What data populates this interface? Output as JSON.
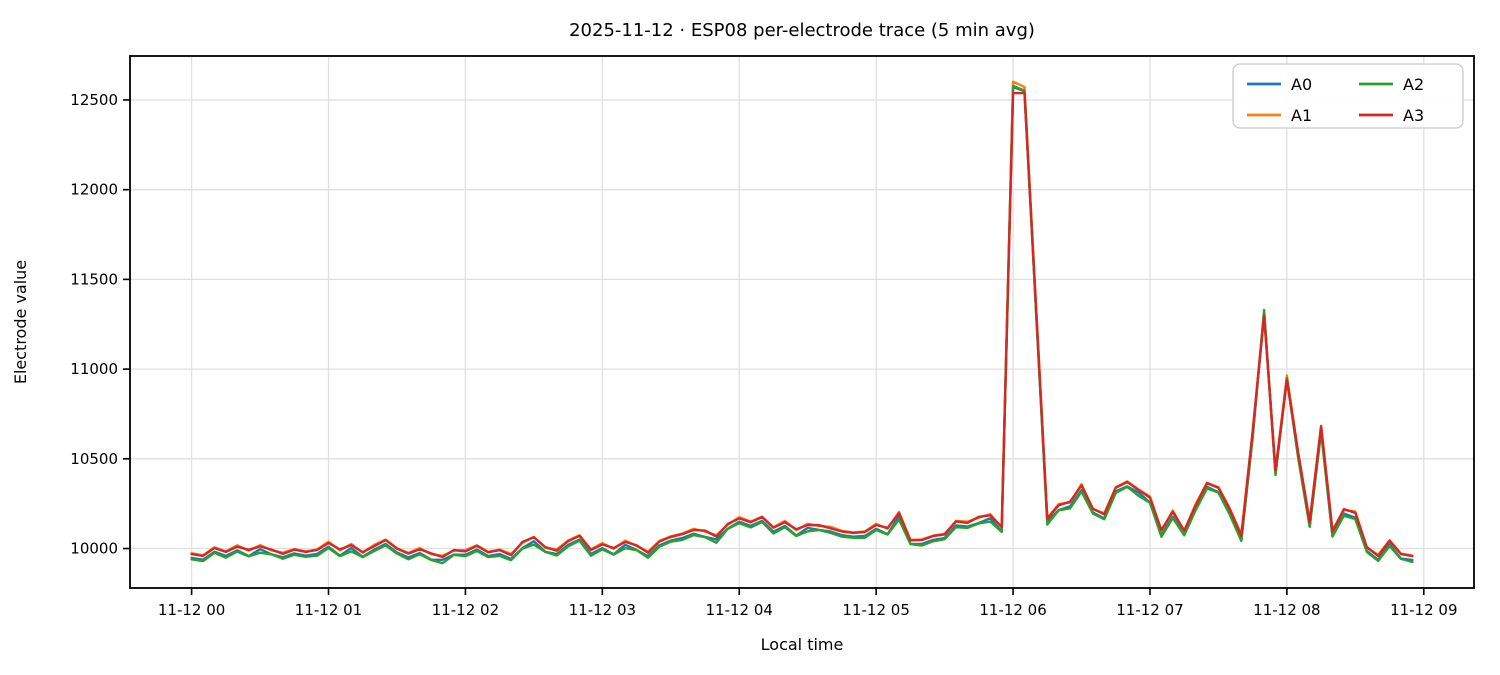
{
  "chart_data": {
    "type": "line",
    "title": "2025-11-12 · ESP08 per-electrode trace (5 min avg)",
    "xlabel": "Local time",
    "ylabel": "Electrode value",
    "grid": true,
    "legend_position": "upper right",
    "legend_columns": 2,
    "x_start": "00:00",
    "x_interval_minutes": 5,
    "n_points": 108,
    "x_tick_labels": [
      "11-12 00",
      "11-12 01",
      "11-12 02",
      "11-12 03",
      "11-12 04",
      "11-12 05",
      "11-12 06",
      "11-12 07",
      "11-12 08",
      "11-12 09"
    ],
    "x_tick_minutes": [
      0,
      60,
      120,
      180,
      240,
      300,
      360,
      420,
      480,
      540
    ],
    "y_ticks": [
      10000,
      10500,
      11000,
      11500,
      12000,
      12500
    ],
    "ylim": [
      9780,
      12745
    ],
    "xlim_minutes": [
      -27,
      562
    ],
    "colors": {
      "background": "#ffffff",
      "grid": "#e0e0e0",
      "spine": "#000000",
      "legend_border": "#cccccc"
    },
    "series": [
      {
        "name": "A0",
        "color": "#1f77b4",
        "values": [
          9948,
          9938,
          9982,
          9959,
          9990,
          9958,
          9996,
          9968,
          9951,
          9973,
          9960,
          9970,
          10010,
          9960,
          10003,
          9954,
          9994,
          10026,
          9978,
          9950,
          9975,
          9938,
          9937,
          9966,
          9965,
          9994,
          9958,
          9969,
          9942,
          10002,
          10041,
          9982,
          9969,
          10020,
          10050,
          9970,
          10002,
          9968,
          10021,
          9992,
          9957,
          10018,
          10044,
          10058,
          10082,
          10065,
          10051,
          10111,
          10149,
          10126,
          10154,
          10094,
          10126,
          10072,
          10115,
          10104,
          10095,
          10074,
          10066,
          10070,
          10110,
          10080,
          10181,
          10026,
          10025,
          10048,
          10058,
          10129,
          10122,
          10142,
          10169,
          10094,
          12572,
          12548,
          11338,
          10152,
          10214,
          10236,
          10325,
          10201,
          10168,
          10319,
          10346,
          10312,
          10256,
          10078,
          10178,
          10079,
          10218,
          10344,
          10314,
          10206,
          10044,
          10630,
          11312,
          10416,
          10945,
          10509,
          10123,
          10667,
          10068,
          10195,
          10172,
          9987,
          9936,
          10023,
          9944,
          9936
        ]
      },
      {
        "name": "A1",
        "color": "#ff7f0e",
        "values": [
          9974,
          9962,
          10006,
          9984,
          10018,
          9988,
          10019,
          9990,
          9977,
          9997,
          9984,
          9995,
          10038,
          9990,
          10026,
          9976,
          10020,
          10050,
          10002,
          9975,
          10003,
          9968,
          9960,
          9988,
          9991,
          10018,
          9982,
          9994,
          9970,
          10032,
          10064,
          10004,
          9995,
          10044,
          10074,
          9995,
          10030,
          9998,
          10044,
          10014,
          9983,
          10042,
          10068,
          10083,
          10110,
          10095,
          10074,
          10133,
          10175,
          10150,
          10178,
          10119,
          10154,
          10102,
          10138,
          10126,
          10121,
          10098,
          10090,
          10095,
          10138,
          10110,
          10204,
          10048,
          10051,
          10072,
          10082,
          10154,
          10150,
          10172,
          10192,
          10116,
          12602,
          12572,
          11366,
          10169,
          10248,
          10256,
          10359,
          10218,
          10197,
          10342,
          10374,
          10329,
          10290,
          10098,
          10212,
          10096,
          10247,
          10367,
          10342,
          10223,
          10078,
          10650,
          11315,
          10433,
          10965,
          10532,
          10151,
          10684,
          10102,
          10215,
          10206,
          10004,
          9965,
          10046,
          9972,
          9960
        ]
      },
      {
        "name": "A2",
        "color": "#2ca02c",
        "values": [
          9940,
          9930,
          9976,
          9949,
          9983,
          9956,
          9977,
          9967,
          9943,
          9965,
          9954,
          9960,
          10003,
          9958,
          9984,
          9953,
          9986,
          10018,
          9972,
          9940,
          9968,
          9936,
          9918,
          9965,
          9957,
          9986,
          9952,
          9959,
          9935,
          10000,
          10022,
          9981,
          9961,
          10012,
          10044,
          9960,
          9995,
          9966,
          10002,
          9991,
          9949,
          10010,
          10038,
          10048,
          10075,
          10063,
          10032,
          10110,
          10141,
          10118,
          10148,
          10084,
          10119,
          10070,
          10096,
          10103,
          10087,
          10066,
          10060,
          10060,
          10103,
          10078,
          10162,
          10025,
          10017,
          10040,
          10052,
          10119,
          10115,
          10140,
          10150,
          10093,
          12578,
          12552,
          11336,
          10134,
          10213,
          10224,
          10317,
          10195,
          10163,
          10310,
          10344,
          10294,
          10255,
          10066,
          10170,
          10073,
          10213,
          10335,
          10312,
          10188,
          10043,
          10618,
          11330,
          10410,
          10950,
          10500,
          10121,
          10649,
          10067,
          10183,
          10164,
          9981,
          9931,
          10014,
          9942,
          9925
        ]
      },
      {
        "name": "A3",
        "color": "#d62728",
        "values": [
          9969,
          9959,
          10003,
          9981,
          10011,
          9993,
          10012,
          9994,
          9970,
          9994,
          9981,
          9992,
          10031,
          9995,
          10019,
          9980,
          10013,
          10047,
          9999,
          9972,
          9996,
          9973,
          9953,
          9992,
          9984,
          10015,
          9979,
          9991,
          9963,
          10037,
          10063,
          10008,
          9988,
          10041,
          10071,
          9992,
          10023,
          10003,
          10037,
          10018,
          9976,
          10039,
          10065,
          10080,
          10103,
          10100,
          10067,
          10137,
          10168,
          10147,
          10175,
          10116,
          10147,
          10107,
          10131,
          10130,
          10113,
          10095,
          10087,
          10092,
          10131,
          10115,
          10197,
          10046,
          10047,
          10069,
          10079,
          10151,
          10143,
          10177,
          10185,
          10120,
          12538,
          12538,
          11363,
          10166,
          10241,
          10261,
          10352,
          10222,
          10190,
          10339,
          10371,
          10326,
          10283,
          10103,
          10205,
          10100,
          10240,
          10364,
          10339,
          10220,
          10071,
          10655,
          11298,
          10437,
          10940,
          10529,
          10148,
          10681,
          10095,
          10220,
          10199,
          10008,
          9958,
          10043,
          9969,
          9958
        ]
      }
    ]
  }
}
